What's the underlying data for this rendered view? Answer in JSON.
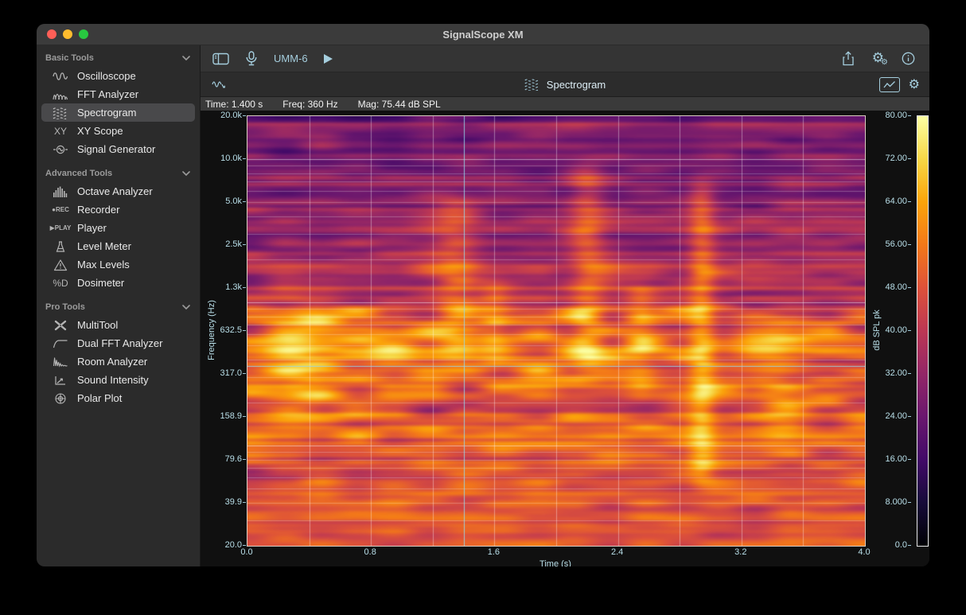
{
  "window": {
    "title": "SignalScope XM"
  },
  "colors": {
    "accent": "#a5cede",
    "tick_text": "#b9dfe9",
    "sidebar_bg": "#2b2b2b",
    "selected_bg": "#49494b",
    "titlebar_bg": "#3b3b3b"
  },
  "traffic_lights": [
    "#ff5f57",
    "#febc2e",
    "#28c840"
  ],
  "sidebar": {
    "icon_text": {
      "xy": "XY",
      "rec": "●REC",
      "play": "▶PLAY",
      "dosimeter": "%D"
    },
    "sections": [
      {
        "label": "Basic Tools",
        "items": [
          {
            "label": "Oscilloscope",
            "icon": "oscilloscope-icon"
          },
          {
            "label": "FFT Analyzer",
            "icon": "fft-analyzer-icon"
          },
          {
            "label": "Spectrogram",
            "icon": "spectrogram-icon",
            "selected": true
          },
          {
            "label": "XY Scope",
            "icon": "xy-scope-icon"
          },
          {
            "label": "Signal Generator",
            "icon": "signal-generator-icon"
          }
        ]
      },
      {
        "label": "Advanced Tools",
        "items": [
          {
            "label": "Octave Analyzer",
            "icon": "octave-analyzer-icon"
          },
          {
            "label": "Recorder",
            "icon": "recorder-icon"
          },
          {
            "label": "Player",
            "icon": "player-icon"
          },
          {
            "label": "Level Meter",
            "icon": "level-meter-icon"
          },
          {
            "label": "Max Levels",
            "icon": "max-levels-icon"
          },
          {
            "label": "Dosimeter",
            "icon": "dosimeter-icon"
          }
        ]
      },
      {
        "label": "Pro Tools",
        "items": [
          {
            "label": "MultiTool",
            "icon": "multitool-icon"
          },
          {
            "label": "Dual FFT Analyzer",
            "icon": "dual-fft-analyzer-icon"
          },
          {
            "label": "Room Analyzer",
            "icon": "room-analyzer-icon"
          },
          {
            "label": "Sound Intensity",
            "icon": "sound-intensity-icon"
          },
          {
            "label": "Polar Plot",
            "icon": "polar-plot-icon"
          }
        ]
      }
    ]
  },
  "toolbar": {
    "device_label": "UMM-6",
    "gear_glyph": "⚙"
  },
  "tabbar": {
    "label": "Spectrogram"
  },
  "statusbar": {
    "time_label": "Time: 1.400 s",
    "freq_label": "Freq: 360 Hz",
    "mag_label": "Mag: 75.44 dB SPL"
  },
  "chart_data": {
    "type": "heatmap",
    "title": "Spectrogram",
    "xlabel": "Time (s)",
    "ylabel": "Frequency (Hz)",
    "colorbar_label": "dB SPL pk",
    "x_range_s": [
      0,
      4
    ],
    "y_range_hz": [
      20,
      20000
    ],
    "y_scale": "log",
    "z_range_db": [
      0,
      80
    ],
    "x_ticks": [
      "0.0",
      "0.8",
      "1.6",
      "2.4",
      "3.2",
      "4.0"
    ],
    "y_ticks": [
      "20.0k",
      "10.0k",
      "5.0k",
      "2.5k",
      "1.3k",
      "632.5",
      "317.0",
      "158.9",
      "79.6",
      "39.9",
      "20.0"
    ],
    "colorbar_ticks": [
      "80.00",
      "72.00",
      "64.00",
      "56.00",
      "48.00",
      "40.00",
      "32.00",
      "24.00",
      "16.00",
      "8.000",
      "0.0"
    ],
    "cursor": {
      "time_s": 1.4,
      "freq_hz": 360,
      "mag_db": 75.44
    },
    "time_gridline_step_s": 0.4,
    "major_gridlines_hz": [
      100,
      1000,
      10000
    ],
    "minor_gridlines_hz": [
      30,
      40,
      50,
      60,
      70,
      80,
      90,
      200,
      300,
      400,
      500,
      600,
      700,
      800,
      900,
      2000,
      3000,
      4000,
      5000,
      6000,
      7000,
      8000,
      9000
    ],
    "colormap": "inferno",
    "colormap_stops": [
      [
        0.0,
        "#000004"
      ],
      [
        0.1,
        "#160b39"
      ],
      [
        0.2,
        "#420a68"
      ],
      [
        0.3,
        "#6a176e"
      ],
      [
        0.4,
        "#932667"
      ],
      [
        0.5,
        "#bc3754"
      ],
      [
        0.6,
        "#dd513a"
      ],
      [
        0.7,
        "#f37819"
      ],
      [
        0.8,
        "#fba40a"
      ],
      [
        0.9,
        "#f6d746"
      ],
      [
        1.0,
        "#fcffa4"
      ]
    ],
    "seed": 7,
    "freq_profile": [
      [
        0,
        0.3
      ],
      [
        0.12,
        0.3
      ],
      [
        0.22,
        0.34
      ],
      [
        0.32,
        0.4
      ],
      [
        0.42,
        0.5
      ],
      [
        0.5,
        0.6
      ],
      [
        0.56,
        0.66
      ],
      [
        0.62,
        0.62
      ],
      [
        0.68,
        0.62
      ],
      [
        0.73,
        0.66
      ],
      [
        0.78,
        0.58
      ],
      [
        0.86,
        0.58
      ],
      [
        0.93,
        0.6
      ],
      [
        1,
        0.62
      ]
    ],
    "noise_amp": [
      [
        0,
        0.14
      ],
      [
        0.25,
        0.16
      ],
      [
        0.4,
        0.22
      ],
      [
        0.48,
        0.3
      ],
      [
        0.6,
        0.32
      ],
      [
        0.68,
        0.26
      ],
      [
        0.8,
        0.2
      ],
      [
        1,
        0.16
      ]
    ],
    "striation": [
      [
        0,
        0.1
      ],
      [
        0.3,
        0.09
      ],
      [
        0.45,
        0.12
      ],
      [
        0.7,
        0.1
      ],
      [
        1,
        0.08
      ]
    ],
    "time_events": [
      {
        "t": 0.35,
        "w": 0.25,
        "lo": 0.4,
        "hi": 0.75,
        "amp": 0.18
      },
      {
        "t": 0.9,
        "w": 0.2,
        "lo": 0.45,
        "hi": 0.65,
        "amp": 0.12
      },
      {
        "t": 1.35,
        "w": 0.14,
        "lo": 0.15,
        "hi": 0.6,
        "amp": 0.2
      },
      {
        "t": 1.6,
        "w": 0.1,
        "lo": 0.35,
        "hi": 0.6,
        "amp": 0.15
      },
      {
        "t": 2.2,
        "w": 0.12,
        "lo": 0.08,
        "hi": 0.62,
        "amp": 0.24
      },
      {
        "t": 2.55,
        "w": 0.1,
        "lo": 0.35,
        "hi": 0.68,
        "amp": 0.16
      },
      {
        "t": 2.95,
        "w": 0.09,
        "lo": 0.12,
        "hi": 0.88,
        "amp": 0.26
      },
      {
        "t": 3.45,
        "w": 0.15,
        "lo": 0.45,
        "hi": 0.8,
        "amp": 0.12
      }
    ]
  }
}
